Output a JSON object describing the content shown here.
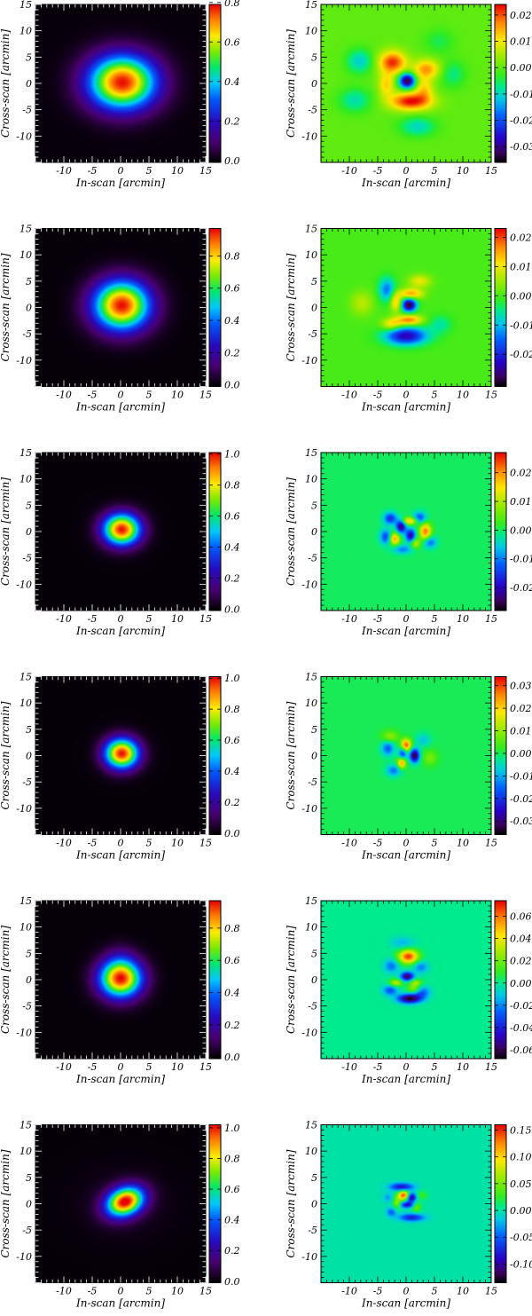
{
  "chart_data": [
    {
      "type": "heatmap",
      "kind": "beam",
      "xlabel": "In-scan [arcmin]",
      "ylabel": "Cross-scan [arcmin]",
      "xlim": [
        -15,
        15
      ],
      "ylim": [
        -15,
        15
      ],
      "xticks": [
        -10,
        -5,
        0,
        5,
        10,
        15
      ],
      "yticks": [
        -10,
        -5,
        0,
        5,
        10,
        15
      ],
      "colorbar": {
        "ticks": [
          "0.0",
          "0.2",
          "0.4",
          "0.6",
          "0.8"
        ],
        "tick_values": [
          0.0,
          0.2,
          0.4,
          0.6,
          0.8
        ],
        "min": -0.01,
        "max": 0.79
      },
      "beam": {
        "x0": 0.3,
        "y0": 0.2,
        "sx": 4.2,
        "sy": 3.6
      }
    },
    {
      "type": "heatmap",
      "kind": "residual",
      "xlabel": "In-scan [arcmin]",
      "ylabel": "Cross-scan [arcmin]",
      "xlim": [
        -15,
        15
      ],
      "ylim": [
        -15,
        15
      ],
      "xticks": [
        -10,
        -5,
        0,
        5,
        10,
        15
      ],
      "yticks": [
        -10,
        -5,
        0,
        5,
        10,
        15
      ],
      "colorbar": {
        "ticks": [
          "0.02",
          "0.01",
          "0.00",
          "-0.01",
          "-0.02",
          "-0.03"
        ],
        "tick_values": [
          0.02,
          0.01,
          0.0,
          -0.01,
          -0.02,
          -0.03
        ],
        "min": -0.036,
        "max": 0.024
      },
      "blobs": [
        {
          "x": 0.2,
          "y": 0.5,
          "sx": 1.0,
          "sy": 1.0,
          "a": -0.035
        },
        {
          "x": -2.4,
          "y": 4.0,
          "sx": 1.7,
          "sy": 1.5,
          "a": 0.022
        },
        {
          "x": 3.6,
          "y": 2.7,
          "sx": 1.7,
          "sy": 1.3,
          "a": 0.016
        },
        {
          "x": 0.8,
          "y": -3.4,
          "sx": 2.6,
          "sy": 1.2,
          "a": 0.024
        },
        {
          "x": -3.5,
          "y": -0.2,
          "sx": 1.0,
          "sy": 1.6,
          "a": 0.012
        },
        {
          "x": 3.2,
          "y": -1.0,
          "sx": 1.1,
          "sy": 1.5,
          "a": 0.011
        },
        {
          "x": -8.2,
          "y": 4.2,
          "sx": 1.6,
          "sy": 1.6,
          "a": -0.011
        },
        {
          "x": -9.0,
          "y": -3.2,
          "sx": 2.0,
          "sy": 1.6,
          "a": -0.009
        },
        {
          "x": 2.0,
          "y": -8.2,
          "sx": 2.2,
          "sy": 1.3,
          "a": -0.01
        },
        {
          "x": 8.2,
          "y": 1.8,
          "sx": 1.6,
          "sy": 1.8,
          "a": -0.007
        },
        {
          "x": 5.8,
          "y": 8.0,
          "sx": 1.8,
          "sy": 1.6,
          "a": -0.005
        }
      ]
    },
    {
      "type": "heatmap",
      "kind": "beam",
      "xlabel": "In-scan [arcmin]",
      "ylabel": "Cross-scan [arcmin]",
      "xlim": [
        -15,
        15
      ],
      "ylim": [
        -15,
        15
      ],
      "xticks": [
        -10,
        -5,
        0,
        5,
        10,
        15
      ],
      "yticks": [
        -10,
        -5,
        0,
        5,
        10,
        15
      ],
      "colorbar": {
        "ticks": [
          "0.0",
          "0.2",
          "0.4",
          "0.6",
          "0.8"
        ],
        "tick_values": [
          0.0,
          0.2,
          0.4,
          0.6,
          0.8
        ],
        "min": -0.01,
        "max": 0.97
      },
      "beam": {
        "x0": 0.2,
        "y0": 0.4,
        "sx": 3.5,
        "sy": 3.3
      }
    },
    {
      "type": "heatmap",
      "kind": "residual",
      "xlabel": "In-scan [arcmin]",
      "ylabel": "Cross-scan [arcmin]",
      "xlim": [
        -15,
        15
      ],
      "ylim": [
        -15,
        15
      ],
      "xticks": [
        -10,
        -5,
        0,
        5,
        10,
        15
      ],
      "yticks": [
        -10,
        -5,
        0,
        5,
        10,
        15
      ],
      "colorbar": {
        "ticks": [
          "0.02",
          "0.01",
          "0.00",
          "-0.01",
          "-0.02"
        ],
        "tick_values": [
          0.02,
          0.01,
          0.0,
          -0.01,
          -0.02
        ],
        "min": -0.031,
        "max": 0.023
      },
      "blobs": [
        {
          "x": 0.5,
          "y": 0.5,
          "sx": 0.9,
          "sy": 0.9,
          "a": -0.03
        },
        {
          "x": 0.5,
          "y": -2.4,
          "sx": 1.6,
          "sy": 0.7,
          "a": 0.018
        },
        {
          "x": 0.8,
          "y": 2.6,
          "sx": 1.5,
          "sy": 0.7,
          "a": 0.016
        },
        {
          "x": -1.8,
          "y": 1.0,
          "sx": 0.7,
          "sy": 1.2,
          "a": 0.014
        },
        {
          "x": 0.0,
          "y": -5.4,
          "sx": 2.6,
          "sy": 1.2,
          "a": -0.024
        },
        {
          "x": -3.4,
          "y": 3.4,
          "sx": 1.0,
          "sy": 1.6,
          "a": -0.014
        },
        {
          "x": 2.4,
          "y": 5.0,
          "sx": 1.4,
          "sy": 0.9,
          "a": 0.01
        },
        {
          "x": -2.6,
          "y": -3.2,
          "sx": 1.2,
          "sy": 0.8,
          "a": 0.012
        },
        {
          "x": -7.8,
          "y": 0.8,
          "sx": 1.4,
          "sy": 1.6,
          "a": 0.007
        },
        {
          "x": 6.0,
          "y": -3.2,
          "sx": 1.4,
          "sy": 1.2,
          "a": -0.006
        }
      ]
    },
    {
      "type": "heatmap",
      "kind": "beam",
      "xlabel": "In-scan [arcmin]",
      "ylabel": "Cross-scan [arcmin]",
      "xlim": [
        -15,
        15
      ],
      "ylim": [
        -15,
        15
      ],
      "xticks": [
        -10,
        -5,
        0,
        5,
        10,
        15
      ],
      "yticks": [
        -10,
        -5,
        0,
        5,
        10,
        15
      ],
      "colorbar": {
        "ticks": [
          "0.0",
          "0.2",
          "0.4",
          "0.6",
          "0.8",
          "1.0"
        ],
        "tick_values": [
          0.0,
          0.2,
          0.4,
          0.6,
          0.8,
          1.0
        ],
        "min": -0.01,
        "max": 1.01
      },
      "beam": {
        "x0": 0.2,
        "y0": 0.4,
        "sx": 2.3,
        "sy": 2.1
      }
    },
    {
      "type": "heatmap",
      "kind": "residual",
      "xlabel": "In-scan [arcmin]",
      "ylabel": "Cross-scan [arcmin]",
      "xlim": [
        -15,
        15
      ],
      "ylim": [
        -15,
        15
      ],
      "xticks": [
        -10,
        -5,
        0,
        5,
        10,
        15
      ],
      "yticks": [
        -10,
        -5,
        0,
        5,
        10,
        15
      ],
      "colorbar": {
        "ticks": [
          "0.02",
          "0.01",
          "0.00",
          "-0.01",
          "-0.02"
        ],
        "tick_values": [
          0.02,
          0.01,
          0.0,
          -0.01,
          -0.02
        ],
        "min": -0.028,
        "max": 0.027
      },
      "blobs": [
        {
          "x": -0.9,
          "y": 1.0,
          "sx": 0.6,
          "sy": 0.9,
          "a": -0.024
        },
        {
          "x": 0.8,
          "y": -0.8,
          "sx": 0.6,
          "sy": 0.9,
          "a": -0.022
        },
        {
          "x": -2.0,
          "y": -1.4,
          "sx": 0.6,
          "sy": 0.8,
          "a": 0.02
        },
        {
          "x": 3.4,
          "y": 0.0,
          "sx": 0.7,
          "sy": 1.1,
          "a": 0.022
        },
        {
          "x": 0.6,
          "y": 2.0,
          "sx": 1.0,
          "sy": 0.5,
          "a": 0.018
        },
        {
          "x": -2.8,
          "y": 2.5,
          "sx": 0.8,
          "sy": 0.8,
          "a": -0.016
        },
        {
          "x": 2.4,
          "y": 2.6,
          "sx": 0.8,
          "sy": 0.8,
          "a": -0.014
        },
        {
          "x": 1.6,
          "y": -2.2,
          "sx": 0.6,
          "sy": 0.7,
          "a": 0.012
        },
        {
          "x": -3.6,
          "y": -1.0,
          "sx": 0.7,
          "sy": 1.0,
          "a": -0.014
        },
        {
          "x": 4.2,
          "y": -2.0,
          "sx": 0.8,
          "sy": 0.8,
          "a": -0.012
        },
        {
          "x": -0.6,
          "y": -3.4,
          "sx": 1.2,
          "sy": 0.6,
          "a": -0.01
        }
      ]
    },
    {
      "type": "heatmap",
      "kind": "beam",
      "xlabel": "In-scan [arcmin]",
      "ylabel": "Cross-scan [arcmin]",
      "xlim": [
        -15,
        15
      ],
      "ylim": [
        -15,
        15
      ],
      "xticks": [
        -10,
        -5,
        0,
        5,
        10,
        15
      ],
      "yticks": [
        -10,
        -5,
        0,
        5,
        10,
        15
      ],
      "colorbar": {
        "ticks": [
          "0.0",
          "0.2",
          "0.4",
          "0.6",
          "0.8",
          "1.0"
        ],
        "tick_values": [
          0.0,
          0.2,
          0.4,
          0.6,
          0.8,
          1.0
        ],
        "min": -0.01,
        "max": 1.01
      },
      "beam": {
        "x0": 0.2,
        "y0": 0.4,
        "sx": 2.1,
        "sy": 2.0
      }
    },
    {
      "type": "heatmap",
      "kind": "residual",
      "xlabel": "In-scan [arcmin]",
      "ylabel": "Cross-scan [arcmin]",
      "xlim": [
        -15,
        15
      ],
      "ylim": [
        -15,
        15
      ],
      "xticks": [
        -10,
        -5,
        0,
        5,
        10,
        15
      ],
      "yticks": [
        -10,
        -5,
        0,
        5,
        10,
        15
      ],
      "colorbar": {
        "ticks": [
          "0.03",
          "0.02",
          "0.01",
          "0.00",
          "-0.01",
          "-0.02",
          "-0.03"
        ],
        "tick_values": [
          0.03,
          0.02,
          0.01,
          0.0,
          -0.01,
          -0.02,
          -0.03
        ],
        "min": -0.036,
        "max": 0.034
      },
      "blobs": [
        {
          "x": 1.5,
          "y": 0.0,
          "sx": 0.6,
          "sy": 0.9,
          "a": -0.034
        },
        {
          "x": -0.6,
          "y": 0.4,
          "sx": 0.5,
          "sy": 0.8,
          "a": -0.02
        },
        {
          "x": 0.0,
          "y": 2.0,
          "sx": 0.6,
          "sy": 0.8,
          "a": 0.03
        },
        {
          "x": -0.8,
          "y": -1.4,
          "sx": 0.5,
          "sy": 0.7,
          "a": 0.026
        },
        {
          "x": -3.2,
          "y": 1.4,
          "sx": 0.8,
          "sy": 1.0,
          "a": -0.016
        },
        {
          "x": -2.2,
          "y": -2.8,
          "sx": 0.9,
          "sy": 0.8,
          "a": -0.014
        },
        {
          "x": -2.8,
          "y": 3.6,
          "sx": 1.0,
          "sy": 0.8,
          "a": 0.01
        },
        {
          "x": 4.2,
          "y": -0.4,
          "sx": 0.9,
          "sy": 1.0,
          "a": 0.008
        },
        {
          "x": 3.0,
          "y": 3.0,
          "sx": 0.9,
          "sy": 0.9,
          "a": -0.008
        }
      ]
    },
    {
      "type": "heatmap",
      "kind": "beam",
      "xlabel": "In-scan [arcmin]",
      "ylabel": "Cross-scan [arcmin]",
      "xlim": [
        -15,
        15
      ],
      "ylim": [
        -15,
        15
      ],
      "xticks": [
        -10,
        -5,
        0,
        5,
        10,
        15
      ],
      "yticks": [
        -10,
        -5,
        0,
        5,
        10,
        15
      ],
      "colorbar": {
        "ticks": [
          "0.0",
          "0.2",
          "0.4",
          "0.6",
          "0.8"
        ],
        "tick_values": [
          0.0,
          0.2,
          0.4,
          0.6,
          0.8
        ],
        "min": -0.01,
        "max": 0.97
      },
      "beam": {
        "x0": 0.0,
        "y0": 0.2,
        "sx": 2.6,
        "sy": 2.5,
        "tail": {
          "x": 0.0,
          "y": 4.0,
          "sx": 2.0,
          "sy": 2.0,
          "a": 0.07
        }
      }
    },
    {
      "type": "heatmap",
      "kind": "residual",
      "xlabel": "In-scan [arcmin]",
      "ylabel": "Cross-scan [arcmin]",
      "xlim": [
        -15,
        15
      ],
      "ylim": [
        -15,
        15
      ],
      "xticks": [
        -10,
        -5,
        0,
        5,
        10,
        15
      ],
      "yticks": [
        -10,
        -5,
        0,
        5,
        10,
        15
      ],
      "colorbar": {
        "ticks": [
          "0.06",
          "0.04",
          "0.02",
          "0.00",
          "-0.02",
          "-0.04",
          "-0.06"
        ],
        "tick_values": [
          0.06,
          0.04,
          0.02,
          0.0,
          -0.02,
          -0.04,
          -0.06
        ],
        "min": -0.068,
        "max": 0.074
      },
      "blobs": [
        {
          "x": 0.4,
          "y": 4.4,
          "sx": 1.2,
          "sy": 0.9,
          "a": 0.068
        },
        {
          "x": 0.2,
          "y": 0.6,
          "sx": 0.8,
          "sy": 0.6,
          "a": -0.06
        },
        {
          "x": 0.6,
          "y": -3.6,
          "sx": 1.4,
          "sy": 0.6,
          "a": -0.066
        },
        {
          "x": -1.8,
          "y": -0.6,
          "sx": 0.8,
          "sy": 0.5,
          "a": 0.034
        },
        {
          "x": 1.6,
          "y": -0.6,
          "sx": 0.8,
          "sy": 0.5,
          "a": 0.03
        },
        {
          "x": 1.4,
          "y": -1.8,
          "sx": 0.8,
          "sy": 0.5,
          "a": 0.026
        },
        {
          "x": -2.8,
          "y": -2.0,
          "sx": 0.9,
          "sy": 0.7,
          "a": -0.03
        },
        {
          "x": 2.8,
          "y": -2.4,
          "sx": 1.0,
          "sy": 0.8,
          "a": -0.028
        },
        {
          "x": -2.6,
          "y": 2.6,
          "sx": 0.9,
          "sy": 0.9,
          "a": -0.024
        },
        {
          "x": 2.6,
          "y": 2.4,
          "sx": 0.9,
          "sy": 0.8,
          "a": -0.022
        },
        {
          "x": -0.6,
          "y": 7.0,
          "sx": 1.4,
          "sy": 0.8,
          "a": -0.014
        }
      ]
    },
    {
      "type": "heatmap",
      "kind": "beam",
      "xlabel": "In-scan [arcmin]",
      "ylabel": "Cross-scan [arcmin]",
      "xlim": [
        -15,
        15
      ],
      "ylim": [
        -15,
        15
      ],
      "xticks": [
        -10,
        -5,
        0,
        5,
        10,
        15
      ],
      "yticks": [
        -10,
        -5,
        0,
        5,
        10,
        15
      ],
      "colorbar": {
        "ticks": [
          "0.0",
          "0.2",
          "0.4",
          "0.6",
          "0.8",
          "1.0"
        ],
        "tick_values": [
          0.0,
          0.2,
          0.4,
          0.6,
          0.8,
          1.0
        ],
        "min": -0.01,
        "max": 1.02
      },
      "beam": {
        "x0": 0.8,
        "y0": 0.4,
        "sx": 2.4,
        "sy": 1.8,
        "rot": 0.5,
        "tail": {
          "x": 0.5,
          "y": 0.0,
          "sx": 5.0,
          "sy": 4.0,
          "a": 0.05
        }
      }
    },
    {
      "type": "heatmap",
      "kind": "residual",
      "xlabel": "In-scan [arcmin]",
      "ylabel": "Cross-scan [arcmin]",
      "xlim": [
        -15,
        15
      ],
      "ylim": [
        -15,
        15
      ],
      "xticks": [
        -10,
        -5,
        0,
        5,
        10,
        15
      ],
      "yticks": [
        -10,
        -5,
        0,
        5,
        10,
        15
      ],
      "colorbar": {
        "ticks": [
          "0.15",
          "0.10",
          "0.05",
          "0.00",
          "-0.05",
          "-0.10"
        ],
        "tick_values": [
          0.15,
          0.1,
          0.05,
          0.0,
          -0.05,
          -0.1
        ],
        "min": -0.135,
        "max": 0.16
      },
      "blobs": [
        {
          "x": -0.4,
          "y": 1.6,
          "sx": 0.7,
          "sy": 0.6,
          "a": 0.15
        },
        {
          "x": 0.9,
          "y": 1.2,
          "sx": 0.6,
          "sy": 0.6,
          "a": -0.12
        },
        {
          "x": 0.2,
          "y": -0.2,
          "sx": 0.9,
          "sy": 0.4,
          "a": -0.09
        },
        {
          "x": -1.6,
          "y": 0.2,
          "sx": 0.5,
          "sy": 0.8,
          "a": 0.06
        },
        {
          "x": 1.8,
          "y": -0.6,
          "sx": 0.6,
          "sy": 0.7,
          "a": 0.05
        },
        {
          "x": -0.8,
          "y": 3.2,
          "sx": 1.4,
          "sy": 0.5,
          "a": -0.09
        },
        {
          "x": 1.0,
          "y": -2.6,
          "sx": 1.5,
          "sy": 0.5,
          "a": -0.08
        },
        {
          "x": -2.6,
          "y": -1.6,
          "sx": 0.6,
          "sy": 0.6,
          "a": -0.05
        },
        {
          "x": 2.8,
          "y": 1.6,
          "sx": 0.7,
          "sy": 0.6,
          "a": 0.03
        },
        {
          "x": -3.2,
          "y": 1.2,
          "sx": 0.6,
          "sy": 0.6,
          "a": -0.03
        }
      ]
    }
  ]
}
